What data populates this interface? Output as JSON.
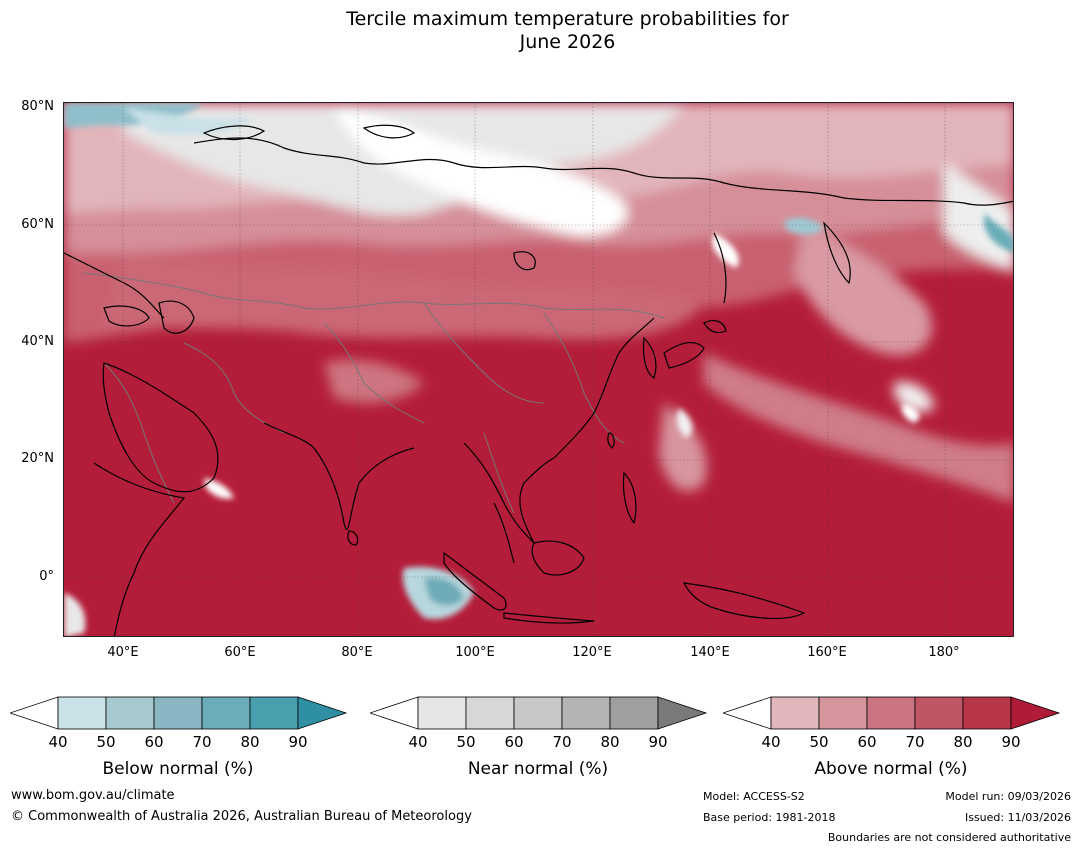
{
  "title": {
    "line1": "Tercile maximum temperature probabilities for",
    "line2": "June 2026"
  },
  "axes": {
    "lat_labels": [
      "80°N",
      "60°N",
      "40°N",
      "20°N",
      "0°"
    ],
    "lon_labels": [
      "40°E",
      "60°E",
      "80°E",
      "100°E",
      "120°E",
      "140°E",
      "160°E",
      "180°"
    ]
  },
  "legends": [
    {
      "title": "Below normal (%)",
      "ticks": [
        "40",
        "50",
        "60",
        "70",
        "80",
        "90"
      ],
      "colors": [
        "#ffffff",
        "#c9e1e7",
        "#a6c8cf",
        "#89b6c2",
        "#6badb8",
        "#4a9fae",
        "#2f8fa3"
      ]
    },
    {
      "title": "Near normal (%)",
      "ticks": [
        "40",
        "50",
        "60",
        "70",
        "80",
        "90"
      ],
      "colors": [
        "#ffffff",
        "#e6e6e6",
        "#d7d7d7",
        "#c8c8c8",
        "#b4b4b4",
        "#9f9f9f",
        "#7a7a7a"
      ]
    },
    {
      "title": "Above normal (%)",
      "ticks": [
        "40",
        "50",
        "60",
        "70",
        "80",
        "90"
      ],
      "colors": [
        "#ffffff",
        "#e1b7bc",
        "#d4959d",
        "#c97480",
        "#c05565",
        "#b73749",
        "#b01c38"
      ]
    }
  ],
  "footer": {
    "url": "www.bom.gov.au/climate",
    "copyright": "© Commonwealth of Australia 2026, Australian Bureau of Meteorology",
    "model": "Model: ACCESS-S2",
    "base_period": "Base period: 1981-2018",
    "model_run": "Model run: 09/03/2026",
    "issued": "Issued: 11/03/2026",
    "disclaimer": "Boundaries are not considered authoritative"
  },
  "palette": {
    "ocean_dark": "#b31b38",
    "land_mid": "#c65565",
    "land_light": "#d78f99",
    "near_white": "#f4f4f4"
  }
}
